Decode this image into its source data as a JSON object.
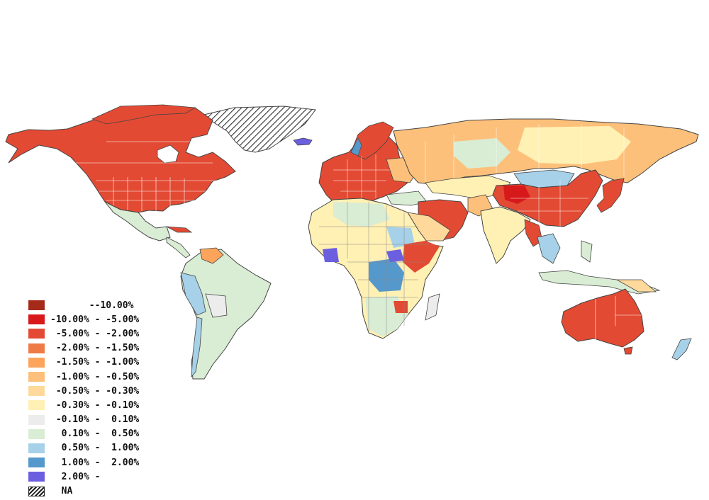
{
  "legend": {
    "classes": [
      {
        "label": "       --10.00%",
        "color": "#a52a1a"
      },
      {
        "label": "-10.00% - -5.00%",
        "color": "#d7191c"
      },
      {
        "label": " -5.00% - -2.00%",
        "color": "#e34a33"
      },
      {
        "label": " -2.00% - -1.50%",
        "color": "#f07a45"
      },
      {
        "label": " -1.50% - -1.00%",
        "color": "#fca45c"
      },
      {
        "label": " -1.00% - -0.50%",
        "color": "#fdc07a"
      },
      {
        "label": " -0.50% - -0.30%",
        "color": "#fed99b"
      },
      {
        "label": " -0.30% - -0.10%",
        "color": "#fff0b3"
      },
      {
        "label": " -0.10% -  0.10%",
        "color": "#ececec"
      },
      {
        "label": "  0.10% -  0.50%",
        "color": "#d9ecd4"
      },
      {
        "label": "  0.50% -  1.00%",
        "color": "#a6d1e8"
      },
      {
        "label": "  1.00% -  2.00%",
        "color": "#5598cc"
      },
      {
        "label": "  2.00% -",
        "color": "#6b5fe0"
      }
    ],
    "na_label": "  NA"
  },
  "colors": {
    "outline": "#444444",
    "internal_borders": "#ffffff"
  }
}
